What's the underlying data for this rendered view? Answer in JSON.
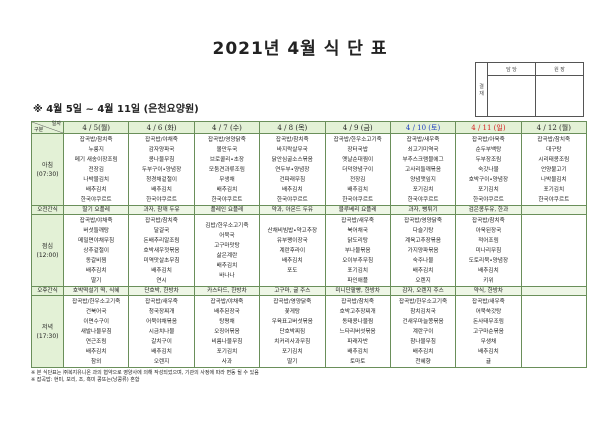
{
  "title": "2021년 4월 식 단 표",
  "approval": {
    "side_label": "결재",
    "columns": [
      "담 당",
      "원 장"
    ]
  },
  "subtitle": "※ 4월 5일 ~ 4월 11일 (은천요양원)",
  "table": {
    "corner_top": "일자",
    "corner_bottom": "구분",
    "days": [
      {
        "label": "4 / 5(월)",
        "type": "weekday"
      },
      {
        "label": "4 / 6 (화)",
        "type": "weekday"
      },
      {
        "label": "4 / 7 (수)",
        "type": "weekday"
      },
      {
        "label": "4 / 8 (목)",
        "type": "weekday"
      },
      {
        "label": "4 / 9 (금)",
        "type": "weekday"
      },
      {
        "label": "4 / 10 (토)",
        "type": "sat"
      },
      {
        "label": "4 / 11 (일)",
        "type": "sun"
      },
      {
        "label": "4 / 12 (월)",
        "type": "weekday"
      }
    ],
    "colors": {
      "header_bg": "#e3f1d6",
      "saturday": "#1f3fbf",
      "sunday": "#d42020",
      "border": "#6a8f5a"
    },
    "rows": [
      {
        "label": "아침",
        "time": "(07:30)",
        "kind": "meal",
        "cells": [
          [
            "잡곡밥/참치죽",
            "누룽지",
            "메기 새송이장조림",
            "전장김",
            "나박물김치",
            "배추김치",
            "한국야쿠르트"
          ],
          [
            "잡곡밥/야채죽",
            "감자양파국",
            "콩나물무침",
            "두부구이•양념장",
            "청경채겉절이",
            "배추김치",
            "한국야쿠르트"
          ],
          [
            "잡곡밥/영양닭죽",
            "몰만두국",
            "브로콜리•초장",
            "모둠견과류조림",
            "무생채",
            "배추김치",
            "한국야쿠르트"
          ],
          [
            "잡곡밥/참치죽",
            "바지락살무국",
            "닭안심굴소스볶음",
            "연두부•양념장",
            "건파래무침",
            "배추김치",
            "한국야쿠르트"
          ],
          [
            "잡곡밥/한우소고기죽",
            "장터국밥",
            "옛날순대찜이",
            "더덕양념구이",
            "전장김",
            "배추김치",
            "한국야쿠르트"
          ],
          [
            "잡곡밥/새우죽",
            "쇠고기미역국",
            "부추스크램블에그",
            "고사리들깨볶음",
            "양념깻잎지",
            "포기김치",
            "한국야쿠르트"
          ],
          [
            "잡곡밥/아욱죽",
            "순두부백탕",
            "두부장조림",
            "숙갓나물",
            "호박구이•양념장",
            "포기김치",
            "한국야쿠르트"
          ],
          [
            "잡곡밥/참치죽",
            "대구탕",
            "시리태콩조림",
            "언양불고기",
            "나박물김치",
            "포기김치",
            "한국야쿠르트"
          ]
        ]
      },
      {
        "label": "오전간식",
        "kind": "snack",
        "cells": [
          "딸기 요플레",
          "과자, 참깨 두유",
          "플레인 요플레",
          "약과, 아몬드 두유",
          "블루베리 요플레",
          "과자, 뻥튀기",
          "검은콩두유, 한과",
          ""
        ]
      },
      {
        "label": "점심",
        "time": "(12:00)",
        "kind": "meal",
        "cells": [
          [
            "잡곡밥/야채죽",
            "버섯들깨탕",
            "메밀면야채무침",
            "상추겉절이",
            "동갈비찜",
            "배추김치",
            "딸기"
          ],
          [
            "잡곡밥/참치죽",
            "달걀국",
            "돈배추리알조림",
            "호박새우젓볶음",
            "미역맛살초무침",
            "배추김치",
            "연시"
          ],
          [
            "김밥/한우소고기죽",
            "어묵국",
            "고구마맛탕",
            "삶은계란",
            "배추김치",
            "바나나"
          ],
          [
            "산채비빔밥•약고추장",
            "유부팽이장국",
            "계란후라이",
            "배추김치",
            "포도"
          ],
          [
            "잡곡밥/새우죽",
            "북어채국",
            "닭도리탕",
            "부나물볶음",
            "오이부추무침",
            "포기김치",
            "파인애플"
          ],
          [
            "잡곡밥/영양닭죽",
            "다슬기탕",
            "계육고추장볶음",
            "가지양파볶음",
            "숙주나물",
            "배추김치",
            "오렌지"
          ],
          [
            "잡곡밥/참치죽",
            "아욱된장국",
            "적어조림",
            "미나리무침",
            "도토리묵•양념장",
            "배추김치",
            "키위"
          ],
          []
        ]
      },
      {
        "label": "오후간식",
        "kind": "snack",
        "cells": [
          "호박떡설기 떡, 식혜",
          "단호박, 한방차",
          "카스타드, 한방차",
          "고구마, 귤 주스",
          "미니단팥빵, 한방차",
          "감자, 오렌지 주스",
          "약식, 한방차",
          ""
        ]
      },
      {
        "label": "저녁",
        "time": "(17:30)",
        "kind": "meal",
        "cells": [
          [
            "잡곡밥/한우소고기죽",
            "건북어국",
            "이면수구이",
            "새발나물무침",
            "연근조림",
            "배추김치",
            "참외"
          ],
          [
            "잡곡밥/새우죽",
            "청국장찌개",
            "어묵야채볶음",
            "시금치나물",
            "갈치구이",
            "배추김치",
            "오렌지"
          ],
          [
            "잡곡밥/야채죽",
            "배추된장국",
            "탕평채",
            "오징어볶음",
            "비름나물무침",
            "포기김치",
            "사과"
          ],
          [
            "잡곡밥/영양닭죽",
            "꽃게탕",
            "우육표고버섯볶음",
            "단호박찌짐",
            "치커리사과무침",
            "포기김치",
            "딸기"
          ],
          [
            "잡곡밥/참치죽",
            "호박고추장찌개",
            "동태콩나물찜",
            "느타리버섯볶음",
            "파래자반",
            "배추김치",
            "토마토"
          ],
          [
            "잡곡밥/한우소고기죽",
            "참치김치국",
            "건새우마늘쫑볶음",
            "계란구이",
            "참나물무침",
            "배추김치",
            "천혜향"
          ],
          [
            "잡곡밥/새우죽",
            "어묵쑥갓탕",
            "돈사태무조림",
            "고구마순볶음",
            "무생채",
            "배추김치",
            "귤"
          ],
          []
        ]
      }
    ]
  },
  "footer": [
    "※ 본 식단표는 ㈜복지유니온 과의 협약으로 영양사에 의해 작성되었으며, 기관의 사정에 따라 변동 될 수 있음",
    "※ 잡곡밥: 현미, 보리, 조, 흑미 콩또는(낭콩류) 혼합"
  ]
}
